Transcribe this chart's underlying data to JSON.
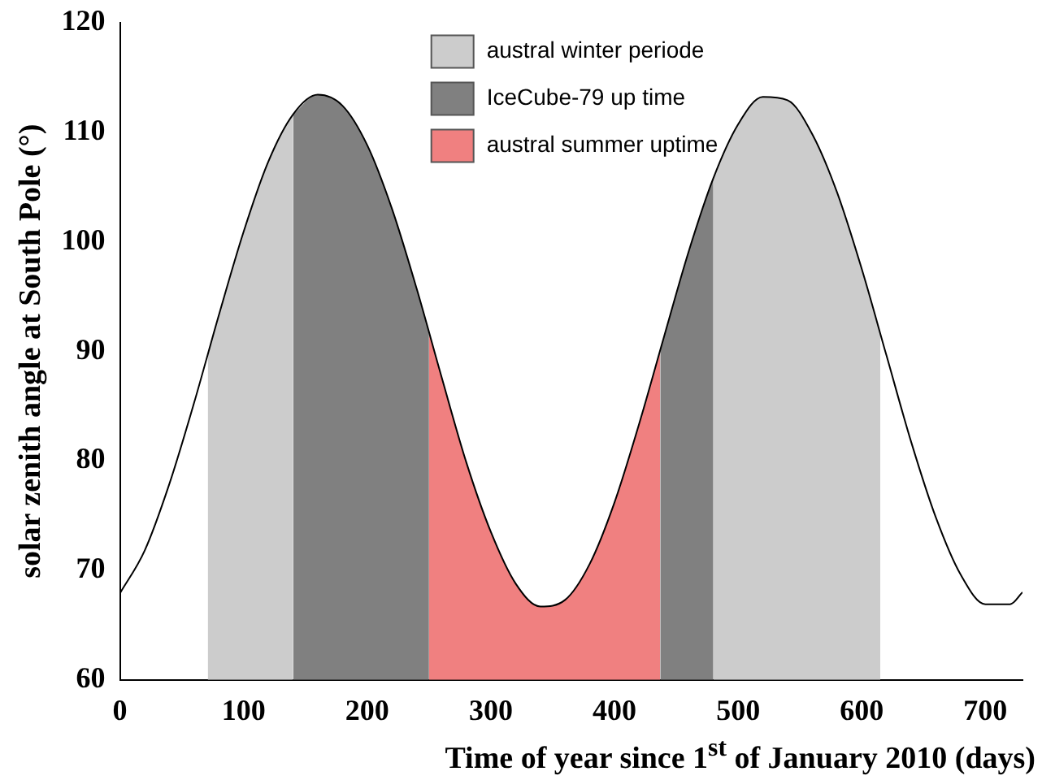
{
  "chart_data": {
    "type": "line",
    "xlabel": "Time of year since 1$^{st}$ of January 2010 (days)",
    "ylabel": "solar zenith angle at South Pole (°)",
    "xlim": [
      0,
      730
    ],
    "xticks": [
      0,
      100,
      200,
      300,
      400,
      500,
      600,
      700
    ],
    "ylim": [
      60,
      120
    ],
    "yticks": [
      60,
      70,
      80,
      90,
      100,
      110,
      120
    ],
    "grid": false,
    "legend": "top",
    "marker": "none",
    "line_style": "solid",
    "series": [
      {
        "color": "#000000",
        "x": [
          0,
          20,
          40,
          60,
          80,
          100,
          120,
          140,
          160,
          180,
          200,
          220,
          240,
          260,
          280,
          300,
          320,
          340,
          360,
          380,
          400,
          420,
          440,
          460,
          480,
          500,
          520,
          540,
          560,
          580,
          600,
          620,
          640,
          660,
          680,
          700,
          720,
          730
        ],
        "values": [
          67.9,
          71.8,
          77.9,
          85.3,
          93.3,
          100.9,
          107.3,
          111.6,
          113.4,
          112.4,
          108.8,
          103.0,
          95.7,
          87.7,
          79.9,
          73.5,
          68.8,
          66.7,
          67.3,
          70.6,
          76.2,
          83.4,
          91.3,
          99.1,
          105.8,
          110.7,
          113.2,
          112.9,
          109.8,
          104.5,
          97.5,
          89.6,
          81.7,
          74.8,
          69.6,
          66.9,
          66.9,
          68.0
        ]
      },
      {
        "type": "area",
        "name": "austral winter periode",
        "color": "#cccccc",
        "x": [
          71,
          80,
          100,
          120,
          140,
          300,
          480,
          500,
          520,
          540,
          560,
          580,
          600,
          615
        ],
        "values": [
          89.7,
          93.3,
          100.9,
          107.3,
          111.6,
          null,
          105.8,
          110.7,
          113.2,
          112.9,
          109.8,
          104.5,
          97.5,
          91.6
        ]
      },
      {
        "type": "area",
        "name": "IceCube-79 up time",
        "color": "#808080",
        "x": [
          140,
          160,
          180,
          200,
          220,
          240,
          250,
          350,
          437,
          440,
          460,
          480
        ],
        "values": [
          111.6,
          113.4,
          112.4,
          108.8,
          103.0,
          95.7,
          91.7,
          null,
          90.1,
          91.3,
          99.1,
          105.8
        ]
      },
      {
        "type": "area",
        "name": "austral summer uptime",
        "color": "#f08080",
        "x": [
          250,
          260,
          280,
          300,
          320,
          340,
          360,
          380,
          400,
          420,
          437
        ],
        "values": [
          91.7,
          87.7,
          79.9,
          73.5,
          68.8,
          66.7,
          67.3,
          70.6,
          76.2,
          83.4,
          90.1
        ]
      }
    ]
  }
}
